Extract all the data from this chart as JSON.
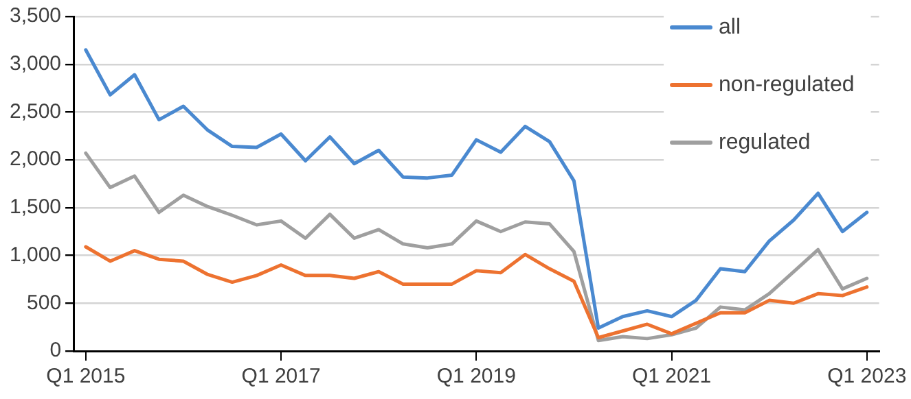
{
  "chart_data": {
    "type": "line",
    "categories": [
      "Q1 2015",
      null,
      null,
      null,
      null,
      null,
      null,
      null,
      "Q1 2017",
      null,
      null,
      null,
      null,
      null,
      null,
      null,
      "Q1 2019",
      null,
      null,
      null,
      null,
      null,
      null,
      null,
      "Q1 2021",
      null,
      null,
      null,
      null,
      null,
      null,
      null,
      "Q1 2023"
    ],
    "series": [
      {
        "name": "all",
        "color": "#4a89d0",
        "values": [
          3150,
          2680,
          2890,
          2420,
          2560,
          2310,
          2140,
          2130,
          2270,
          1990,
          2240,
          1960,
          2100,
          1820,
          1810,
          1840,
          2210,
          2080,
          2350,
          2190,
          1780,
          240,
          360,
          420,
          360,
          530,
          860,
          830,
          1150,
          1370,
          1650,
          1250,
          1450
        ]
      },
      {
        "name": "non-regulated",
        "color": "#ed7230",
        "values": [
          1090,
          940,
          1050,
          960,
          940,
          800,
          720,
          790,
          900,
          790,
          790,
          760,
          830,
          700,
          700,
          700,
          840,
          820,
          1010,
          860,
          730,
          140,
          210,
          280,
          180,
          290,
          400,
          400,
          530,
          500,
          600,
          580,
          670
        ]
      },
      {
        "name": "regulated",
        "color": "#9f9f9f",
        "values": [
          2070,
          1710,
          1830,
          1450,
          1630,
          1510,
          1420,
          1320,
          1360,
          1180,
          1430,
          1180,
          1270,
          1120,
          1080,
          1120,
          1360,
          1250,
          1350,
          1330,
          1040,
          110,
          150,
          130,
          170,
          240,
          460,
          430,
          600,
          830,
          1060,
          650,
          760
        ]
      }
    ],
    "ylim": [
      0,
      3500
    ],
    "yticks": [
      0,
      500,
      {
        "value": 1000,
        "label": "1,000"
      },
      {
        "value": 1500,
        "label": "1,500"
      },
      {
        "value": 2000,
        "label": "2,000"
      },
      {
        "value": 2500,
        "label": "2,500"
      },
      {
        "value": 3000,
        "label": "3,000"
      },
      {
        "value": 3500,
        "label": "3,500"
      }
    ],
    "grid": "y",
    "legend": "top right",
    "marker": "none",
    "line_style": "solid"
  }
}
